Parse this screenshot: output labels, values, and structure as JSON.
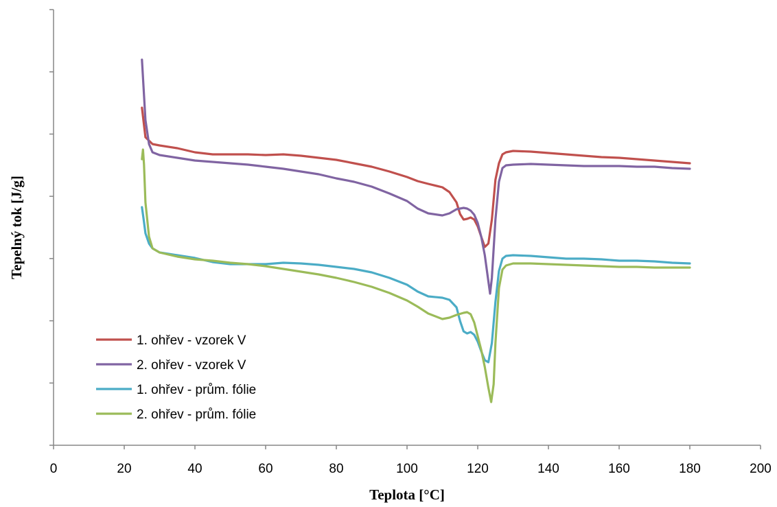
{
  "chart_data": {
    "type": "line",
    "title": "",
    "xlabel": "Teplota [°C]",
    "ylabel": "Tepelný tok [J/g]",
    "xlim": [
      0,
      200
    ],
    "x_ticks": [
      0,
      20,
      40,
      60,
      80,
      100,
      120,
      140,
      160,
      180,
      200
    ],
    "y_ticks_labeled": false,
    "y_tick_count": 7,
    "grid": false,
    "legend_position": "bottom-left",
    "series": [
      {
        "name": "1. ohřev - vzorek V",
        "color": "#c0504d",
        "points": [
          [
            25,
            157
          ],
          [
            26,
            200
          ],
          [
            28,
            210
          ],
          [
            30,
            212
          ],
          [
            35,
            216
          ],
          [
            40,
            222
          ],
          [
            45,
            225
          ],
          [
            50,
            225
          ],
          [
            55,
            225
          ],
          [
            60,
            226
          ],
          [
            65,
            225
          ],
          [
            70,
            227
          ],
          [
            75,
            230
          ],
          [
            80,
            233
          ],
          [
            85,
            238
          ],
          [
            90,
            243
          ],
          [
            95,
            250
          ],
          [
            100,
            258
          ],
          [
            103,
            264
          ],
          [
            106,
            268
          ],
          [
            110,
            273
          ],
          [
            112,
            280
          ],
          [
            114,
            295
          ],
          [
            115,
            312
          ],
          [
            116,
            320
          ],
          [
            117,
            319
          ],
          [
            118,
            317
          ],
          [
            119,
            320
          ],
          [
            120,
            330
          ],
          [
            121,
            345
          ],
          [
            122,
            360
          ],
          [
            123,
            355
          ],
          [
            124,
            320
          ],
          [
            125,
            262
          ],
          [
            126,
            238
          ],
          [
            127,
            225
          ],
          [
            128,
            222
          ],
          [
            130,
            220
          ],
          [
            135,
            221
          ],
          [
            140,
            223
          ],
          [
            145,
            225
          ],
          [
            150,
            227
          ],
          [
            155,
            229
          ],
          [
            160,
            230
          ],
          [
            165,
            232
          ],
          [
            170,
            234
          ],
          [
            175,
            236
          ],
          [
            180,
            238
          ]
        ]
      },
      {
        "name": "2. ohřev - vzorek V",
        "color": "#8064a2",
        "points": [
          [
            25,
            87
          ],
          [
            25.5,
            130
          ],
          [
            26,
            175
          ],
          [
            27,
            210
          ],
          [
            28,
            222
          ],
          [
            30,
            226
          ],
          [
            35,
            230
          ],
          [
            40,
            234
          ],
          [
            45,
            236
          ],
          [
            50,
            238
          ],
          [
            55,
            240
          ],
          [
            60,
            243
          ],
          [
            65,
            246
          ],
          [
            70,
            250
          ],
          [
            75,
            254
          ],
          [
            80,
            260
          ],
          [
            85,
            265
          ],
          [
            90,
            272
          ],
          [
            95,
            282
          ],
          [
            100,
            293
          ],
          [
            103,
            304
          ],
          [
            106,
            311
          ],
          [
            110,
            314
          ],
          [
            112,
            311
          ],
          [
            114,
            305
          ],
          [
            116,
            303
          ],
          [
            117,
            304
          ],
          [
            118,
            307
          ],
          [
            119,
            313
          ],
          [
            120,
            325
          ],
          [
            121,
            345
          ],
          [
            122,
            372
          ],
          [
            123,
            410
          ],
          [
            123.5,
            428
          ],
          [
            124,
            405
          ],
          [
            125,
            320
          ],
          [
            126,
            265
          ],
          [
            127,
            245
          ],
          [
            128,
            241
          ],
          [
            130,
            240
          ],
          [
            135,
            239
          ],
          [
            140,
            240
          ],
          [
            145,
            241
          ],
          [
            150,
            242
          ],
          [
            155,
            242
          ],
          [
            160,
            242
          ],
          [
            165,
            243
          ],
          [
            170,
            243
          ],
          [
            175,
            245
          ],
          [
            180,
            246
          ]
        ]
      },
      {
        "name": "1. ohřev - prům. fólie",
        "color": "#4bacc6",
        "points": [
          [
            25,
            302
          ],
          [
            25.5,
            320
          ],
          [
            26,
            340
          ],
          [
            27,
            355
          ],
          [
            28,
            362
          ],
          [
            30,
            368
          ],
          [
            35,
            372
          ],
          [
            40,
            376
          ],
          [
            45,
            382
          ],
          [
            50,
            385
          ],
          [
            55,
            385
          ],
          [
            60,
            385
          ],
          [
            65,
            383
          ],
          [
            70,
            384
          ],
          [
            75,
            386
          ],
          [
            80,
            389
          ],
          [
            85,
            392
          ],
          [
            90,
            397
          ],
          [
            95,
            405
          ],
          [
            100,
            415
          ],
          [
            103,
            425
          ],
          [
            106,
            432
          ],
          [
            110,
            434
          ],
          [
            112,
            437
          ],
          [
            114,
            448
          ],
          [
            115,
            468
          ],
          [
            116,
            483
          ],
          [
            117,
            486
          ],
          [
            118,
            484
          ],
          [
            119,
            488
          ],
          [
            120,
            498
          ],
          [
            121,
            512
          ],
          [
            122,
            525
          ],
          [
            123,
            528
          ],
          [
            124,
            500
          ],
          [
            125,
            440
          ],
          [
            126,
            395
          ],
          [
            127,
            377
          ],
          [
            128,
            373
          ],
          [
            130,
            372
          ],
          [
            135,
            373
          ],
          [
            140,
            375
          ],
          [
            145,
            377
          ],
          [
            150,
            377
          ],
          [
            155,
            378
          ],
          [
            160,
            380
          ],
          [
            165,
            380
          ],
          [
            170,
            381
          ],
          [
            175,
            383
          ],
          [
            180,
            384
          ]
        ]
      },
      {
        "name": "2. ohřev - prům. fólie",
        "color": "#9bbb59",
        "points": [
          [
            25,
            232
          ],
          [
            25.3,
            218
          ],
          [
            25.6,
            240
          ],
          [
            26,
            295
          ],
          [
            27,
            345
          ],
          [
            28,
            362
          ],
          [
            30,
            368
          ],
          [
            35,
            374
          ],
          [
            40,
            378
          ],
          [
            45,
            380
          ],
          [
            50,
            383
          ],
          [
            55,
            385
          ],
          [
            60,
            388
          ],
          [
            65,
            392
          ],
          [
            70,
            396
          ],
          [
            75,
            400
          ],
          [
            80,
            405
          ],
          [
            85,
            411
          ],
          [
            90,
            418
          ],
          [
            95,
            427
          ],
          [
            100,
            438
          ],
          [
            103,
            447
          ],
          [
            106,
            457
          ],
          [
            110,
            465
          ],
          [
            112,
            463
          ],
          [
            114,
            459
          ],
          [
            116,
            456
          ],
          [
            117,
            455
          ],
          [
            118,
            458
          ],
          [
            119,
            470
          ],
          [
            120,
            490
          ],
          [
            121,
            510
          ],
          [
            122,
            535
          ],
          [
            123,
            565
          ],
          [
            123.8,
            586
          ],
          [
            124.5,
            560
          ],
          [
            125,
            500
          ],
          [
            126,
            420
          ],
          [
            127,
            393
          ],
          [
            128,
            387
          ],
          [
            130,
            384
          ],
          [
            135,
            384
          ],
          [
            140,
            385
          ],
          [
            145,
            386
          ],
          [
            150,
            387
          ],
          [
            155,
            388
          ],
          [
            160,
            389
          ],
          [
            165,
            389
          ],
          [
            170,
            390
          ],
          [
            175,
            390
          ],
          [
            180,
            390
          ]
        ]
      }
    ]
  }
}
